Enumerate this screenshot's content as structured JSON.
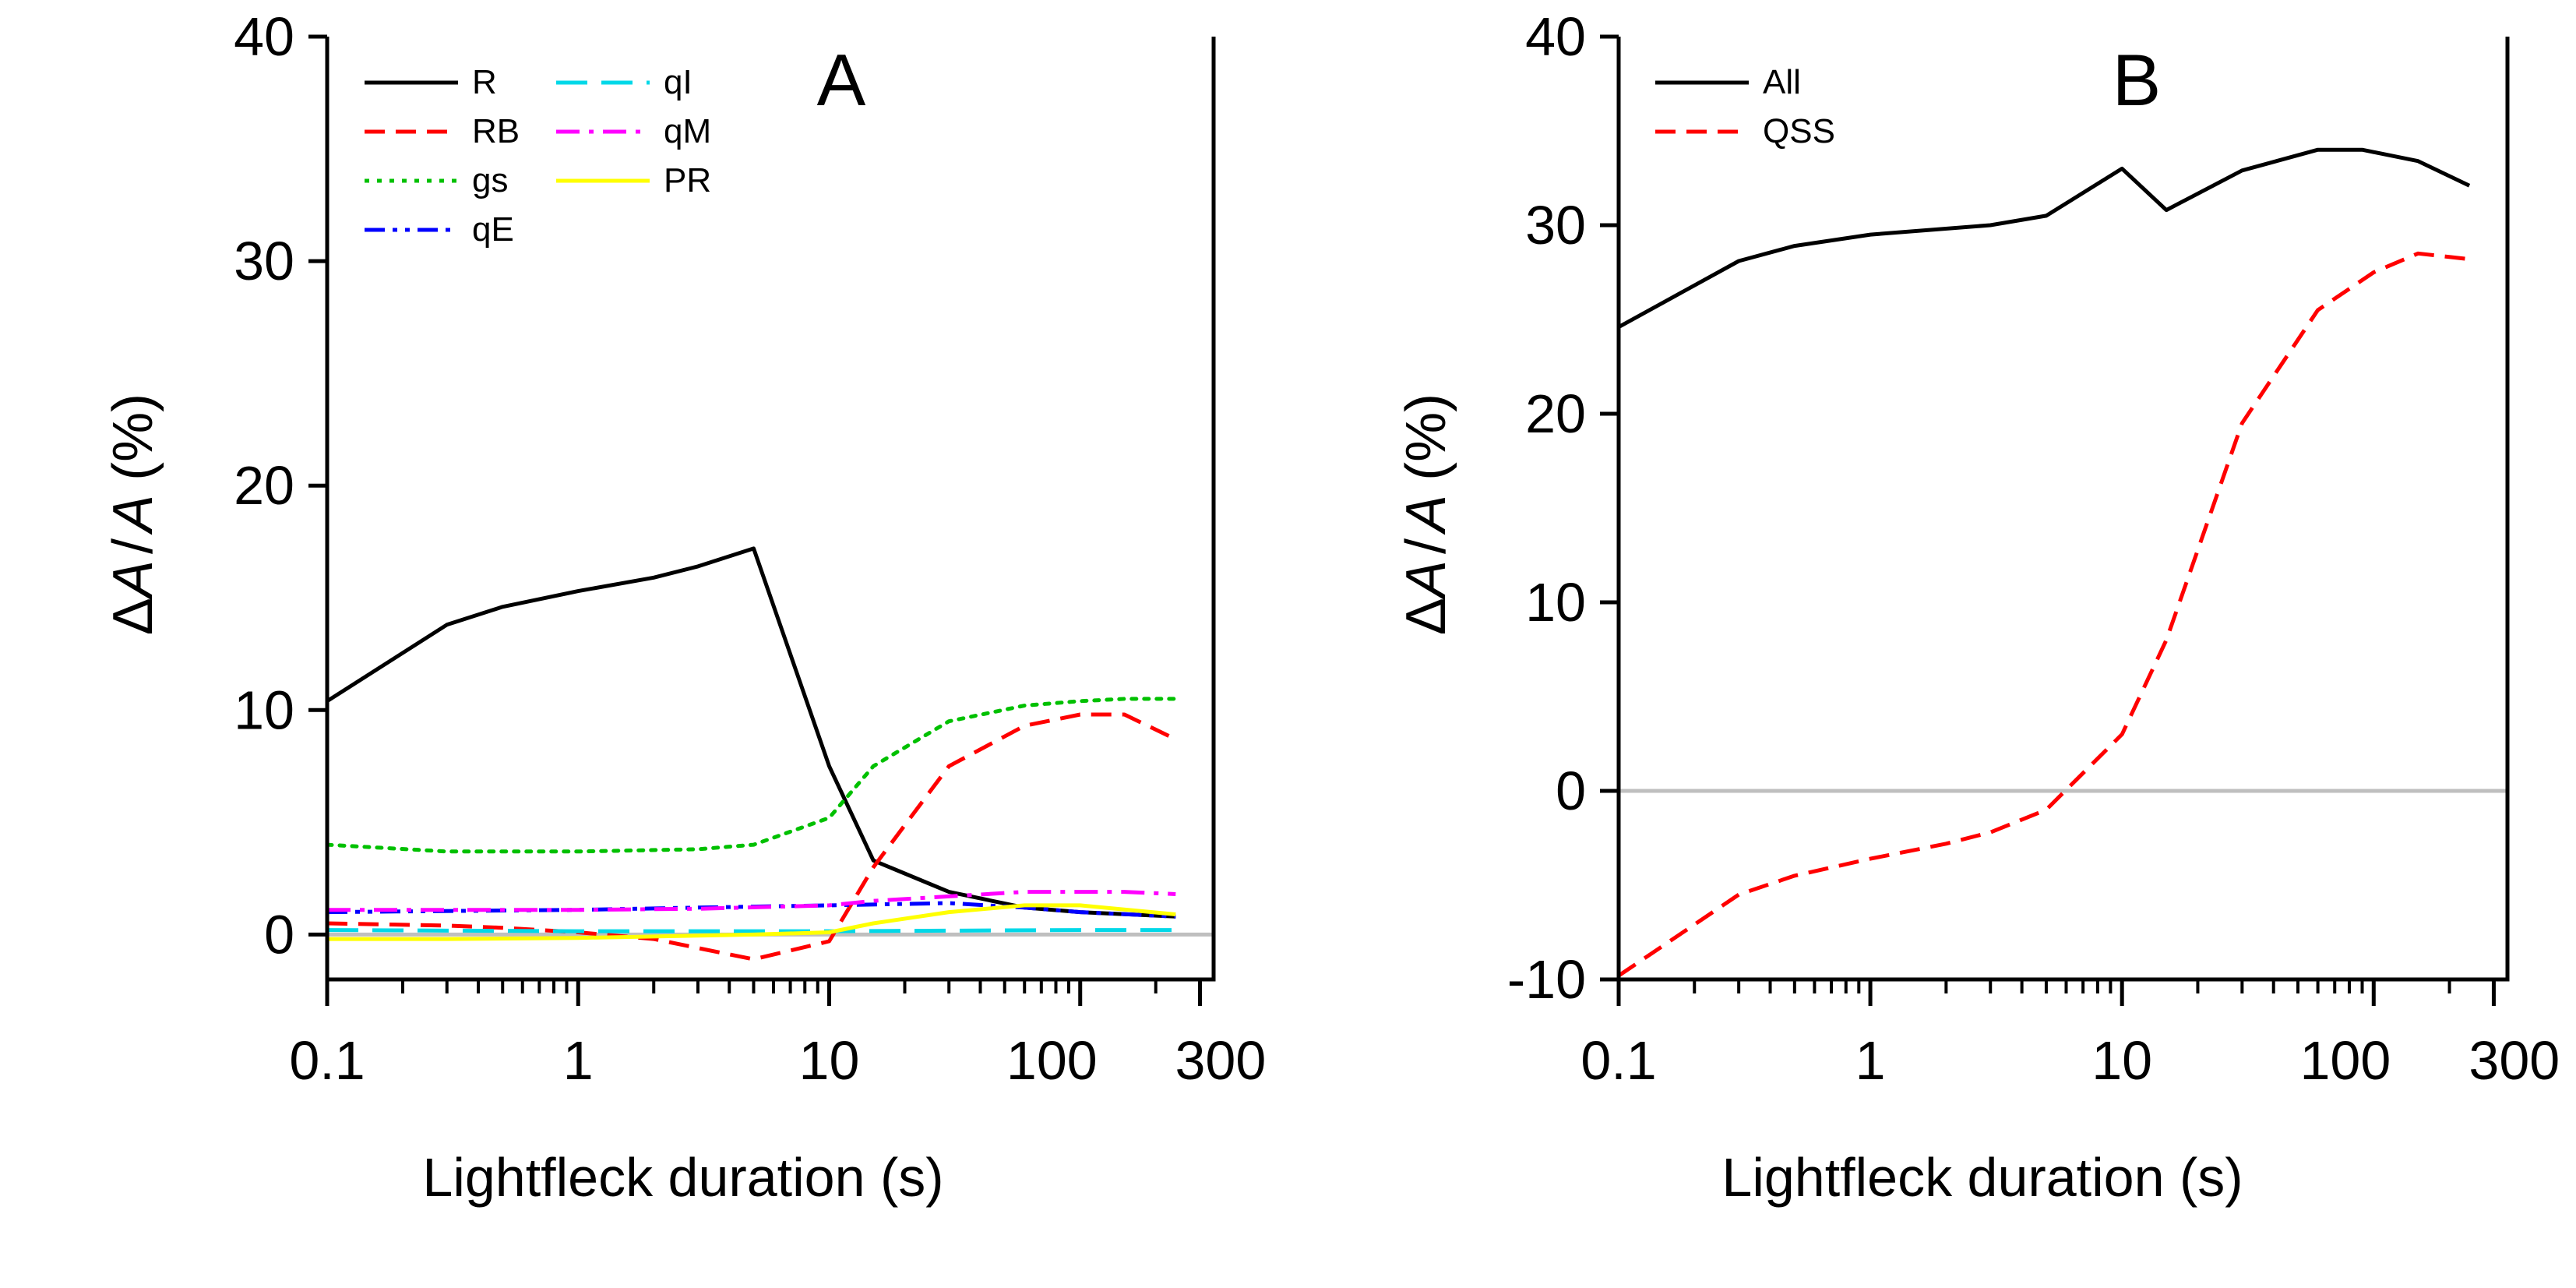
{
  "figure": {
    "background": "#ffffff"
  },
  "chart_data": [
    {
      "id": "A",
      "type": "line",
      "panel_label": "A",
      "title": "",
      "xlabel": "Lightfleck duration (s)",
      "ylabel": {
        "delta": "Δ",
        "var1": "A",
        "slash": "/",
        "var2": "A",
        "unit": "(%)"
      },
      "xscale": "log",
      "xlim": [
        0.1,
        340
      ],
      "ylim": [
        -2,
        40
      ],
      "xticks": [
        0.1,
        1,
        10,
        100,
        300
      ],
      "xtick_labels": [
        "0.1",
        "1",
        "10",
        "100",
        "300"
      ],
      "yticks": [
        0,
        10,
        20,
        30,
        40
      ],
      "ytick_labels": [
        "0",
        "10",
        "20",
        "30",
        "40"
      ],
      "zero_line": {
        "y": 0,
        "color": "#bfbfbf"
      },
      "legend": {
        "position": "top-left",
        "columns": 2
      },
      "series": [
        {
          "name": "R",
          "color": "#000000",
          "dash": "solid",
          "x": [
            0.1,
            0.3,
            0.5,
            1,
            2,
            3,
            5,
            10,
            15,
            30,
            60,
            100,
            240
          ],
          "y": [
            10.4,
            13.8,
            14.6,
            15.3,
            15.9,
            16.4,
            17.2,
            7.5,
            3.3,
            1.9,
            1.2,
            1.0,
            0.8
          ]
        },
        {
          "name": "RB",
          "color": "#ff0000",
          "dash": "dash",
          "x": [
            0.1,
            0.3,
            0.5,
            1,
            2,
            3,
            5,
            10,
            15,
            30,
            60,
            100,
            150,
            240
          ],
          "y": [
            0.5,
            0.4,
            0.3,
            0.1,
            -0.2,
            -0.6,
            -1.1,
            -0.3,
            3.0,
            7.5,
            9.3,
            9.8,
            9.8,
            8.7
          ]
        },
        {
          "name": "gs",
          "color": "#00c000",
          "dash": "dot",
          "x": [
            0.1,
            0.3,
            1,
            3,
            5,
            10,
            15,
            30,
            60,
            100,
            150,
            240
          ],
          "y": [
            4.0,
            3.7,
            3.7,
            3.8,
            4.0,
            5.2,
            7.5,
            9.5,
            10.2,
            10.4,
            10.5,
            10.5
          ]
        },
        {
          "name": "qE",
          "color": "#0000ff",
          "dash": "dashdotdot",
          "x": [
            0.1,
            1,
            3,
            10,
            30,
            60,
            100,
            240
          ],
          "y": [
            1.0,
            1.1,
            1.2,
            1.3,
            1.4,
            1.2,
            1.0,
            0.8
          ]
        },
        {
          "name": "qI",
          "color": "#00d8e8",
          "dash": "longdash",
          "x": [
            0.1,
            1,
            10,
            100,
            240
          ],
          "y": [
            0.2,
            0.15,
            0.15,
            0.2,
            0.2
          ]
        },
        {
          "name": "qM",
          "color": "#ff00ff",
          "dash": "dashdot",
          "x": [
            0.1,
            0.3,
            1,
            3,
            10,
            15,
            30,
            60,
            100,
            150,
            240
          ],
          "y": [
            1.1,
            1.1,
            1.1,
            1.15,
            1.3,
            1.5,
            1.7,
            1.9,
            1.9,
            1.9,
            1.8
          ]
        },
        {
          "name": "PR",
          "color": "#ffff00",
          "dash": "solid",
          "x": [
            0.1,
            0.3,
            1,
            3,
            5,
            10,
            15,
            30,
            60,
            100,
            240
          ],
          "y": [
            -0.2,
            -0.2,
            -0.15,
            -0.05,
            0.0,
            0.1,
            0.5,
            1.0,
            1.3,
            1.3,
            0.9
          ]
        }
      ]
    },
    {
      "id": "B",
      "type": "line",
      "panel_label": "B",
      "title": "",
      "xlabel": "Lightfleck duration (s)",
      "ylabel": {
        "delta": "Δ",
        "var1": "A",
        "slash": "/",
        "var2": "A",
        "unit": "(%)"
      },
      "xscale": "log",
      "xlim": [
        0.1,
        340
      ],
      "ylim": [
        -10,
        40
      ],
      "xticks": [
        0.1,
        1,
        10,
        100,
        300
      ],
      "xtick_labels": [
        "0.1",
        "1",
        "10",
        "100",
        "300"
      ],
      "yticks": [
        -10,
        0,
        10,
        20,
        30,
        40
      ],
      "ytick_labels": [
        "-10",
        "0",
        "10",
        "20",
        "30",
        "40"
      ],
      "zero_line": {
        "y": 0,
        "color": "#bfbfbf"
      },
      "legend": {
        "position": "top-left",
        "columns": 1
      },
      "series": [
        {
          "name": "All",
          "color": "#000000",
          "dash": "solid",
          "x": [
            0.1,
            0.3,
            0.5,
            1,
            3,
            5,
            10,
            15,
            30,
            60,
            90,
            150,
            240
          ],
          "y": [
            24.6,
            28.1,
            28.9,
            29.5,
            30.0,
            30.5,
            33.0,
            30.8,
            32.9,
            34.0,
            34.0,
            33.4,
            32.1
          ]
        },
        {
          "name": "QSS",
          "color": "#ff0000",
          "dash": "dash",
          "x": [
            0.1,
            0.3,
            0.5,
            1,
            2,
            3,
            5,
            10,
            15,
            30,
            60,
            100,
            150,
            240
          ],
          "y": [
            -9.8,
            -5.5,
            -4.5,
            -3.6,
            -2.8,
            -2.2,
            -1.0,
            3.0,
            8.0,
            19.5,
            25.5,
            27.5,
            28.5,
            28.2
          ]
        }
      ]
    }
  ]
}
